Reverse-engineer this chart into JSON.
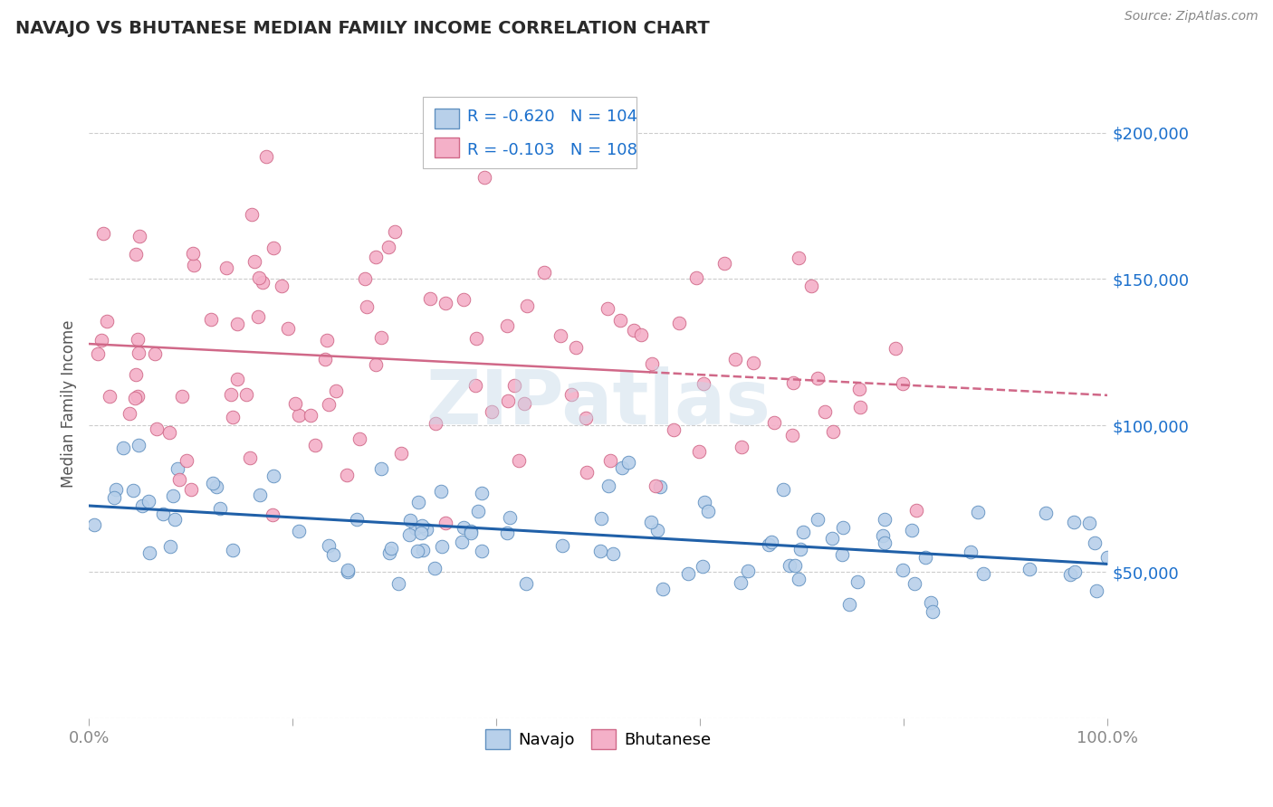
{
  "title": "NAVAJO VS BHUTANESE MEDIAN FAMILY INCOME CORRELATION CHART",
  "source": "Source: ZipAtlas.com",
  "ylabel": "Median Family Income",
  "xlim": [
    0.0,
    100.0
  ],
  "ylim": [
    0,
    215000
  ],
  "yticks": [
    0,
    50000,
    100000,
    150000,
    200000
  ],
  "ytick_labels": [
    "",
    "$50,000",
    "$100,000",
    "$150,000",
    "$200,000"
  ],
  "navajo_R": -0.62,
  "navajo_N": 104,
  "bhutanese_R": -0.103,
  "bhutanese_N": 108,
  "navajo_fill": "#b8d0ea",
  "navajo_edge": "#6090c0",
  "navajo_line": "#2060a8",
  "bhutanese_fill": "#f4b0c8",
  "bhutanese_edge": "#d06888",
  "bhutanese_line": "#d06888",
  "legend_text_color": "#1a6fcc",
  "grid_color": "#cccccc",
  "title_color": "#2a2a2a",
  "source_color": "#888888",
  "watermark_color": "#c5d8e8",
  "axis_label_color": "#555555",
  "tick_color": "#888888",
  "nav_seed": 12,
  "bhu_seed": 55
}
